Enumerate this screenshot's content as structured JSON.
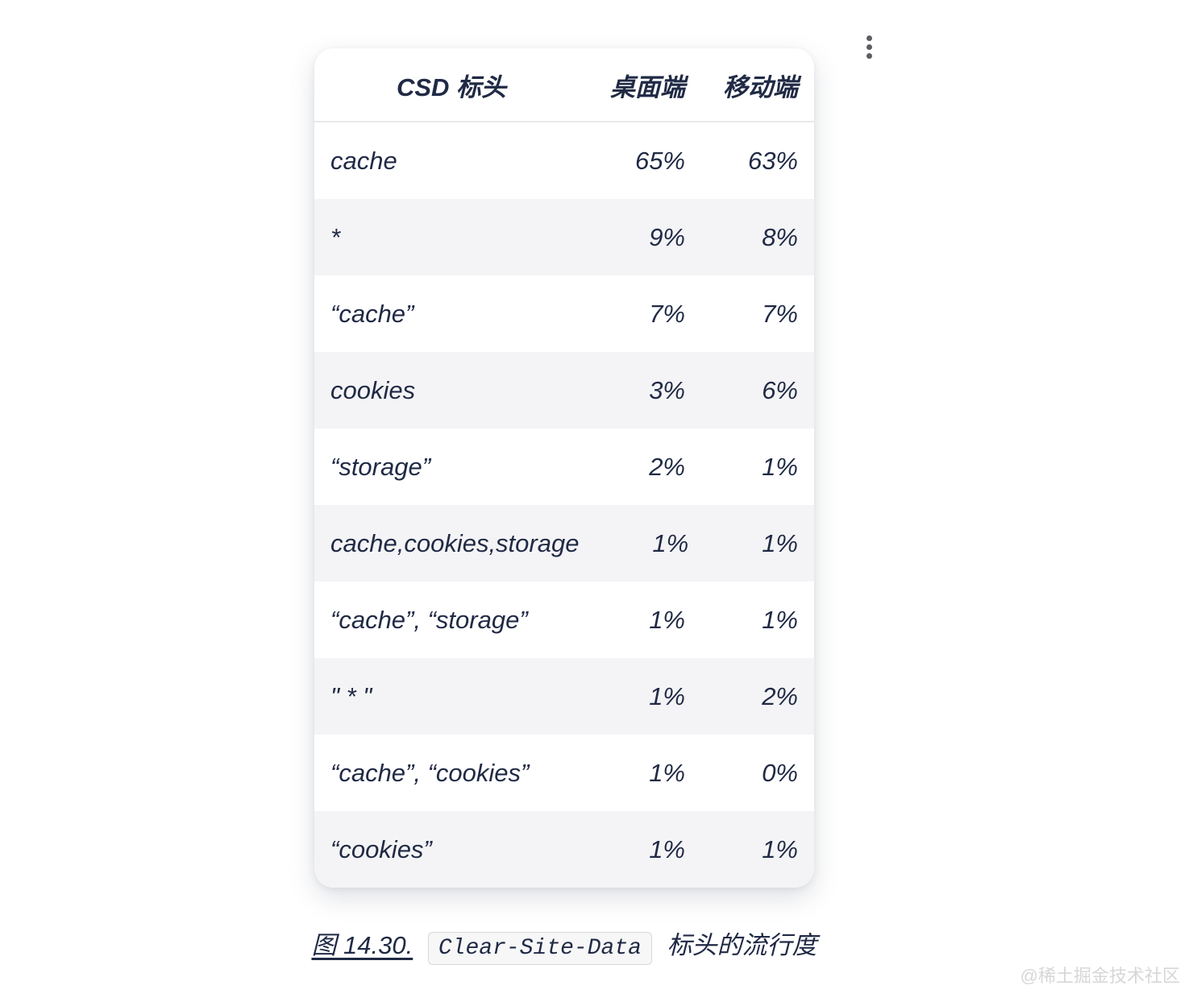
{
  "icons": {
    "kebab_menu": "vertical three-dot more-options icon"
  },
  "colors": {
    "text_navy": "#202a45",
    "row_stripe": "#f4f4f6",
    "header_divider": "#e8e8ec",
    "code_bg": "#f7f7f8",
    "code_border": "#d8d8dc",
    "watermark_gray": "#d7d7d9",
    "kebab_dot": "#5b5f63"
  },
  "chart_data": {
    "type": "table",
    "title": "图 14.30. Clear-Site-Data 标头的流行度",
    "columns": [
      "CSD 标头",
      "桌面端",
      "移动端"
    ],
    "legend_position": "none",
    "grid": "row-striping",
    "rows": [
      {
        "label": "cache",
        "desktop": "65%",
        "mobile": "63%"
      },
      {
        "label": "*",
        "desktop": "9%",
        "mobile": "8%"
      },
      {
        "label": "“cache”",
        "desktop": "7%",
        "mobile": "7%"
      },
      {
        "label": "cookies",
        "desktop": "3%",
        "mobile": "6%"
      },
      {
        "label": "“storage”",
        "desktop": "2%",
        "mobile": "1%"
      },
      {
        "label": "cache,cookies,storage",
        "desktop": "1%",
        "mobile": "1%"
      },
      {
        "label": "“cache”, “storage”",
        "desktop": "1%",
        "mobile": "1%"
      },
      {
        "label": "\" * \"",
        "desktop": "1%",
        "mobile": "2%"
      },
      {
        "label": "“cache”, “cookies”",
        "desktop": "1%",
        "mobile": "0%"
      },
      {
        "label": "“cookies”",
        "desktop": "1%",
        "mobile": "1%"
      }
    ]
  },
  "caption": {
    "figure_label": "图 14.30.",
    "code": "Clear-Site-Data",
    "suffix": "标头的流行度"
  },
  "watermark": "@稀土掘金技术社区"
}
